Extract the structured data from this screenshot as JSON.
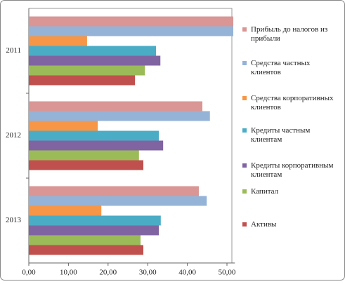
{
  "chart_data": {
    "type": "hbar",
    "categories": [
      "2011",
      "2012",
      "2013"
    ],
    "series": [
      {
        "name": "Прибыль до налогов из прибыли",
        "color": "#d99694",
        "values": [
          51.6,
          43.8,
          42.9
        ]
      },
      {
        "name": "Средства частных клиентов",
        "color": "#95b3d7",
        "values": [
          51.6,
          45.7,
          44.9
        ]
      },
      {
        "name": "Средства корпоративных клиентов",
        "color": "#f79646",
        "values": [
          14.7,
          17.4,
          18.3
        ]
      },
      {
        "name": "Кредиты частным клиентам",
        "color": "#4bacc6",
        "values": [
          32.1,
          32.8,
          33.3
        ]
      },
      {
        "name": "Кредиты корпоративным клиентам",
        "color": "#8064a2",
        "values": [
          33.2,
          33.9,
          32.8
        ]
      },
      {
        "name": "Капитал",
        "color": "#9bbb59",
        "values": [
          29.3,
          27.8,
          28.2
        ]
      },
      {
        "name": "Активы",
        "color": "#c0504d",
        "values": [
          26.8,
          28.9,
          28.9
        ]
      }
    ],
    "xlim": [
      0,
      52
    ],
    "xticks": [
      {
        "value": 0,
        "label": "0,00"
      },
      {
        "value": 10,
        "label": "10,00"
      },
      {
        "value": 20,
        "label": "20,00"
      },
      {
        "value": 30,
        "label": "30,00"
      },
      {
        "value": 40,
        "label": "40,00"
      },
      {
        "value": 50,
        "label": "50,00"
      }
    ],
    "legend": "right"
  }
}
